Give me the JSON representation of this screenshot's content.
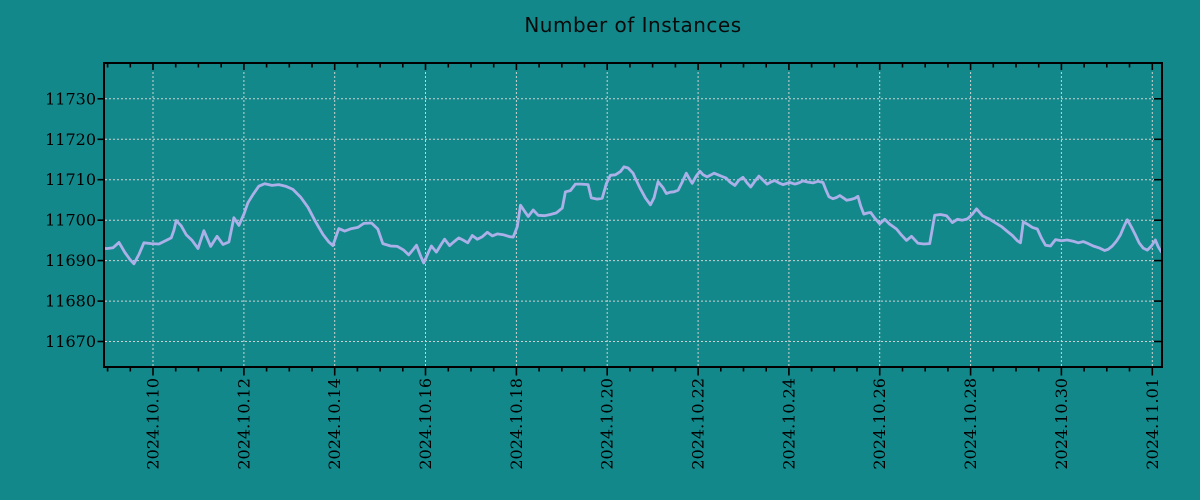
{
  "chart_data": {
    "type": "line",
    "title": "Number of Instances",
    "xlabel": "",
    "ylabel": "",
    "grid": {
      "style": "dotted",
      "color": "#CDD3D3"
    },
    "colors": {
      "background": "#12888B",
      "axis": "#000000",
      "text": "#000000",
      "line": "#ACB0E8"
    },
    "y_axis": {
      "ticks": [
        11670,
        11680,
        11690,
        11700,
        11710,
        11720,
        11730
      ],
      "range": [
        11664,
        11739
      ]
    },
    "x_axis": {
      "tick_labels": [
        "2024.10.10",
        "2024.10.12",
        "2024.10.14",
        "2024.10.16",
        "2024.10.18",
        "2024.10.20",
        "2024.10.22",
        "2024.10.24",
        "2024.10.26",
        "2024.10.28",
        "2024.10.30",
        "2024.11.01"
      ],
      "tick_days": [
        1,
        3,
        5,
        7,
        9,
        11,
        13,
        15,
        17,
        19,
        21,
        23
      ],
      "minor_tick_step_days": 0.5,
      "range_days": [
        -0.07,
        23.2
      ]
    },
    "series": [
      {
        "name": "instances",
        "color": "#ACB0E8",
        "points": [
          [
            -0.07,
            11693.0
          ],
          [
            0.0,
            11693.0
          ],
          [
            0.12,
            11693.2
          ],
          [
            0.25,
            11694.5
          ],
          [
            0.38,
            11692.0
          ],
          [
            0.49,
            11690.3
          ],
          [
            0.58,
            11689.2
          ],
          [
            0.69,
            11691.5
          ],
          [
            0.8,
            11694.4
          ],
          [
            0.96,
            11694.2
          ],
          [
            1.13,
            11694.1
          ],
          [
            1.29,
            11695.0
          ],
          [
            1.4,
            11695.6
          ],
          [
            1.46,
            11697.5
          ],
          [
            1.51,
            11699.9
          ],
          [
            1.62,
            11698.6
          ],
          [
            1.73,
            11696.4
          ],
          [
            1.86,
            11695.0
          ],
          [
            1.99,
            11693.0
          ],
          [
            2.12,
            11697.4
          ],
          [
            2.27,
            11693.5
          ],
          [
            2.41,
            11696.0
          ],
          [
            2.54,
            11694.0
          ],
          [
            2.67,
            11694.6
          ],
          [
            2.78,
            11700.6
          ],
          [
            2.89,
            11698.7
          ],
          [
            3.0,
            11701.5
          ],
          [
            3.09,
            11704.3
          ],
          [
            3.2,
            11706.3
          ],
          [
            3.33,
            11708.4
          ],
          [
            3.46,
            11709.0
          ],
          [
            3.62,
            11708.6
          ],
          [
            3.77,
            11708.8
          ],
          [
            3.92,
            11708.4
          ],
          [
            4.08,
            11707.6
          ],
          [
            4.25,
            11705.7
          ],
          [
            4.41,
            11703.2
          ],
          [
            4.58,
            11699.6
          ],
          [
            4.74,
            11696.5
          ],
          [
            4.87,
            11694.6
          ],
          [
            4.96,
            11693.7
          ],
          [
            5.09,
            11697.9
          ],
          [
            5.22,
            11697.3
          ],
          [
            5.37,
            11697.9
          ],
          [
            5.51,
            11698.2
          ],
          [
            5.64,
            11699.2
          ],
          [
            5.81,
            11699.3
          ],
          [
            5.95,
            11697.8
          ],
          [
            6.06,
            11694.2
          ],
          [
            6.23,
            11693.6
          ],
          [
            6.38,
            11693.5
          ],
          [
            6.52,
            11692.6
          ],
          [
            6.63,
            11691.4
          ],
          [
            6.74,
            11692.9
          ],
          [
            6.8,
            11693.8
          ],
          [
            6.89,
            11691.2
          ],
          [
            6.96,
            11689.4
          ],
          [
            7.07,
            11692.2
          ],
          [
            7.13,
            11693.6
          ],
          [
            7.24,
            11692.1
          ],
          [
            7.35,
            11694.1
          ],
          [
            7.42,
            11695.3
          ],
          [
            7.53,
            11693.7
          ],
          [
            7.62,
            11694.6
          ],
          [
            7.73,
            11695.6
          ],
          [
            7.84,
            11695.0
          ],
          [
            7.93,
            11694.4
          ],
          [
            8.03,
            11696.2
          ],
          [
            8.14,
            11695.3
          ],
          [
            8.25,
            11695.9
          ],
          [
            8.36,
            11697.0
          ],
          [
            8.47,
            11696.1
          ],
          [
            8.58,
            11696.6
          ],
          [
            8.71,
            11696.4
          ],
          [
            8.85,
            11695.9
          ],
          [
            8.93,
            11695.8
          ],
          [
            9.02,
            11698.4
          ],
          [
            9.09,
            11703.7
          ],
          [
            9.18,
            11702.2
          ],
          [
            9.26,
            11700.9
          ],
          [
            9.37,
            11702.5
          ],
          [
            9.48,
            11701.2
          ],
          [
            9.62,
            11701.1
          ],
          [
            9.75,
            11701.4
          ],
          [
            9.88,
            11701.8
          ],
          [
            10.01,
            11703.0
          ],
          [
            10.08,
            11707.0
          ],
          [
            10.19,
            11707.3
          ],
          [
            10.3,
            11708.9
          ],
          [
            10.43,
            11708.9
          ],
          [
            10.58,
            11708.8
          ],
          [
            10.65,
            11705.5
          ],
          [
            10.78,
            11705.2
          ],
          [
            10.89,
            11705.4
          ],
          [
            10.98,
            11709.0
          ],
          [
            11.07,
            11711.1
          ],
          [
            11.18,
            11711.2
          ],
          [
            11.29,
            11712.0
          ],
          [
            11.37,
            11713.2
          ],
          [
            11.46,
            11712.9
          ],
          [
            11.57,
            11711.6
          ],
          [
            11.61,
            11710.6
          ],
          [
            11.72,
            11708.0
          ],
          [
            11.84,
            11705.5
          ],
          [
            11.95,
            11703.8
          ],
          [
            12.03,
            11705.5
          ],
          [
            12.12,
            11709.5
          ],
          [
            12.23,
            11708.0
          ],
          [
            12.3,
            11706.6
          ],
          [
            12.39,
            11706.9
          ],
          [
            12.47,
            11707.0
          ],
          [
            12.56,
            11707.4
          ],
          [
            12.65,
            11709.4
          ],
          [
            12.74,
            11711.6
          ],
          [
            12.8,
            11710.4
          ],
          [
            12.87,
            11709.1
          ],
          [
            12.96,
            11710.9
          ],
          [
            13.04,
            11712.1
          ],
          [
            13.11,
            11711.2
          ],
          [
            13.2,
            11710.7
          ],
          [
            13.29,
            11711.2
          ],
          [
            13.35,
            11711.6
          ],
          [
            13.44,
            11711.2
          ],
          [
            13.53,
            11710.8
          ],
          [
            13.62,
            11710.4
          ],
          [
            13.7,
            11709.4
          ],
          [
            13.81,
            11708.6
          ],
          [
            13.9,
            11709.9
          ],
          [
            13.99,
            11710.6
          ],
          [
            14.08,
            11709.2
          ],
          [
            14.16,
            11708.2
          ],
          [
            14.25,
            11709.6
          ],
          [
            14.34,
            11710.9
          ],
          [
            14.43,
            11709.9
          ],
          [
            14.52,
            11708.9
          ],
          [
            14.6,
            11709.4
          ],
          [
            14.69,
            11709.8
          ],
          [
            14.78,
            11709.2
          ],
          [
            14.87,
            11708.8
          ],
          [
            15.02,
            11709.3
          ],
          [
            15.13,
            11708.9
          ],
          [
            15.22,
            11709.2
          ],
          [
            15.31,
            11709.7
          ],
          [
            15.42,
            11709.4
          ],
          [
            15.53,
            11709.2
          ],
          [
            15.64,
            11709.6
          ],
          [
            15.75,
            11709.3
          ],
          [
            15.81,
            11707.6
          ],
          [
            15.88,
            11705.8
          ],
          [
            15.97,
            11705.3
          ],
          [
            16.05,
            11705.6
          ],
          [
            16.12,
            11706.1
          ],
          [
            16.21,
            11705.4
          ],
          [
            16.27,
            11704.9
          ],
          [
            16.36,
            11705.1
          ],
          [
            16.45,
            11705.4
          ],
          [
            16.52,
            11705.9
          ],
          [
            16.58,
            11703.5
          ],
          [
            16.65,
            11701.5
          ],
          [
            16.74,
            11701.8
          ],
          [
            16.8,
            11701.9
          ],
          [
            16.89,
            11700.5
          ],
          [
            17.0,
            11699.1
          ],
          [
            17.11,
            11700.2
          ],
          [
            17.22,
            11699.0
          ],
          [
            17.37,
            11697.8
          ],
          [
            17.48,
            11696.3
          ],
          [
            17.59,
            11695.0
          ],
          [
            17.7,
            11696.0
          ],
          [
            17.84,
            11694.3
          ],
          [
            17.97,
            11694.1
          ],
          [
            18.1,
            11694.2
          ],
          [
            18.21,
            11701.2
          ],
          [
            18.34,
            11701.4
          ],
          [
            18.47,
            11701.1
          ],
          [
            18.6,
            11699.4
          ],
          [
            18.71,
            11700.2
          ],
          [
            18.82,
            11700.0
          ],
          [
            18.93,
            11700.3
          ],
          [
            19.04,
            11701.5
          ],
          [
            19.13,
            11702.8
          ],
          [
            19.26,
            11701.1
          ],
          [
            19.42,
            11700.2
          ],
          [
            19.55,
            11699.3
          ],
          [
            19.68,
            11698.4
          ],
          [
            19.81,
            11697.2
          ],
          [
            19.92,
            11696.2
          ],
          [
            20.03,
            11694.9
          ],
          [
            20.1,
            11694.4
          ],
          [
            20.16,
            11699.6
          ],
          [
            20.25,
            11699.0
          ],
          [
            20.36,
            11698.2
          ],
          [
            20.47,
            11697.8
          ],
          [
            20.56,
            11695.6
          ],
          [
            20.65,
            11693.8
          ],
          [
            20.76,
            11693.6
          ],
          [
            20.87,
            11695.2
          ],
          [
            21.0,
            11694.9
          ],
          [
            21.13,
            11695.1
          ],
          [
            21.26,
            11694.8
          ],
          [
            21.37,
            11694.4
          ],
          [
            21.48,
            11694.7
          ],
          [
            21.59,
            11694.2
          ],
          [
            21.7,
            11693.6
          ],
          [
            21.84,
            11693.1
          ],
          [
            21.95,
            11692.5
          ],
          [
            22.03,
            11692.8
          ],
          [
            22.12,
            11693.6
          ],
          [
            22.21,
            11694.8
          ],
          [
            22.3,
            11696.4
          ],
          [
            22.39,
            11698.8
          ],
          [
            22.45,
            11700.1
          ],
          [
            22.54,
            11698.3
          ],
          [
            22.63,
            11696.3
          ],
          [
            22.71,
            11694.4
          ],
          [
            22.8,
            11693.1
          ],
          [
            22.89,
            11692.6
          ],
          [
            22.98,
            11693.6
          ],
          [
            23.07,
            11695.1
          ],
          [
            23.13,
            11693.4
          ],
          [
            23.2,
            11692.2
          ]
        ]
      }
    ]
  }
}
